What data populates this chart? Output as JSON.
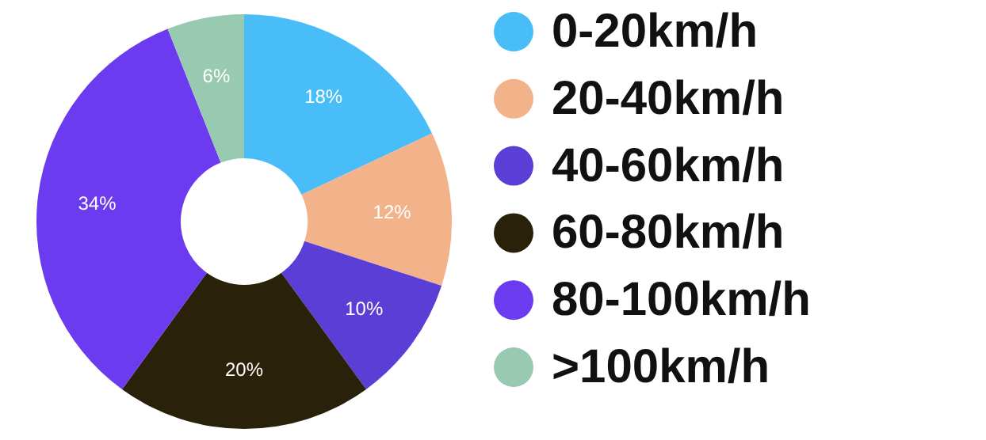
{
  "chart_data": {
    "type": "donut",
    "categories": [
      "0-20km/h",
      "20-40km/h",
      "40-60km/h",
      "60-80km/h",
      "80-100km/h",
      ">100km/h"
    ],
    "values": [
      18,
      12,
      10,
      20,
      34,
      6
    ],
    "value_labels": [
      "18%",
      "12%",
      "10%",
      "20%",
      "34%",
      "6%"
    ],
    "colors": [
      "#48bdf8",
      "#f2b38b",
      "#5a3ed6",
      "#2a210a",
      "#6c3bf0",
      "#98c9b1"
    ],
    "legend": "right"
  }
}
